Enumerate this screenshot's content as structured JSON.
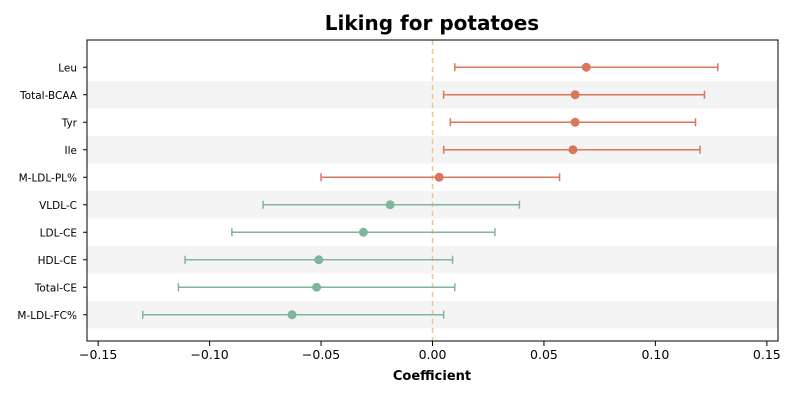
{
  "chart_data": {
    "type": "forest",
    "title": "Liking for potatoes",
    "xlabel": "Coefficient",
    "ylabel": "",
    "xlim": [
      -0.155,
      0.155
    ],
    "xticks": [
      -0.15,
      -0.1,
      -0.05,
      0.0,
      0.05,
      0.1,
      0.15
    ],
    "xtick_labels": [
      "−0.15",
      "−0.10",
      "−0.05",
      "0.00",
      "0.05",
      "0.10",
      "0.15"
    ],
    "reference_line": 0.0,
    "reference_line_color": "#f3c27e",
    "colors": {
      "positive": "#d9765c",
      "negative": "#7fb59a"
    },
    "rows": [
      {
        "label": "Leu",
        "estimate": 0.069,
        "lower": 0.01,
        "upper": 0.128,
        "group": "positive"
      },
      {
        "label": "Total-BCAA",
        "estimate": 0.064,
        "lower": 0.005,
        "upper": 0.122,
        "group": "positive"
      },
      {
        "label": "Tyr",
        "estimate": 0.064,
        "lower": 0.008,
        "upper": 0.118,
        "group": "positive"
      },
      {
        "label": "Ile",
        "estimate": 0.063,
        "lower": 0.005,
        "upper": 0.12,
        "group": "positive"
      },
      {
        "label": "M-LDL-PL%",
        "estimate": 0.003,
        "lower": -0.05,
        "upper": 0.057,
        "group": "positive"
      },
      {
        "label": "VLDL-C",
        "estimate": -0.019,
        "lower": -0.076,
        "upper": 0.039,
        "group": "negative"
      },
      {
        "label": "LDL-CE",
        "estimate": -0.031,
        "lower": -0.09,
        "upper": 0.028,
        "group": "negative"
      },
      {
        "label": "HDL-CE",
        "estimate": -0.051,
        "lower": -0.111,
        "upper": 0.009,
        "group": "negative"
      },
      {
        "label": "Total-CE",
        "estimate": -0.052,
        "lower": -0.114,
        "upper": 0.01,
        "group": "negative"
      },
      {
        "label": "M-LDL-FC%",
        "estimate": -0.063,
        "lower": -0.13,
        "upper": 0.005,
        "group": "negative"
      }
    ]
  }
}
